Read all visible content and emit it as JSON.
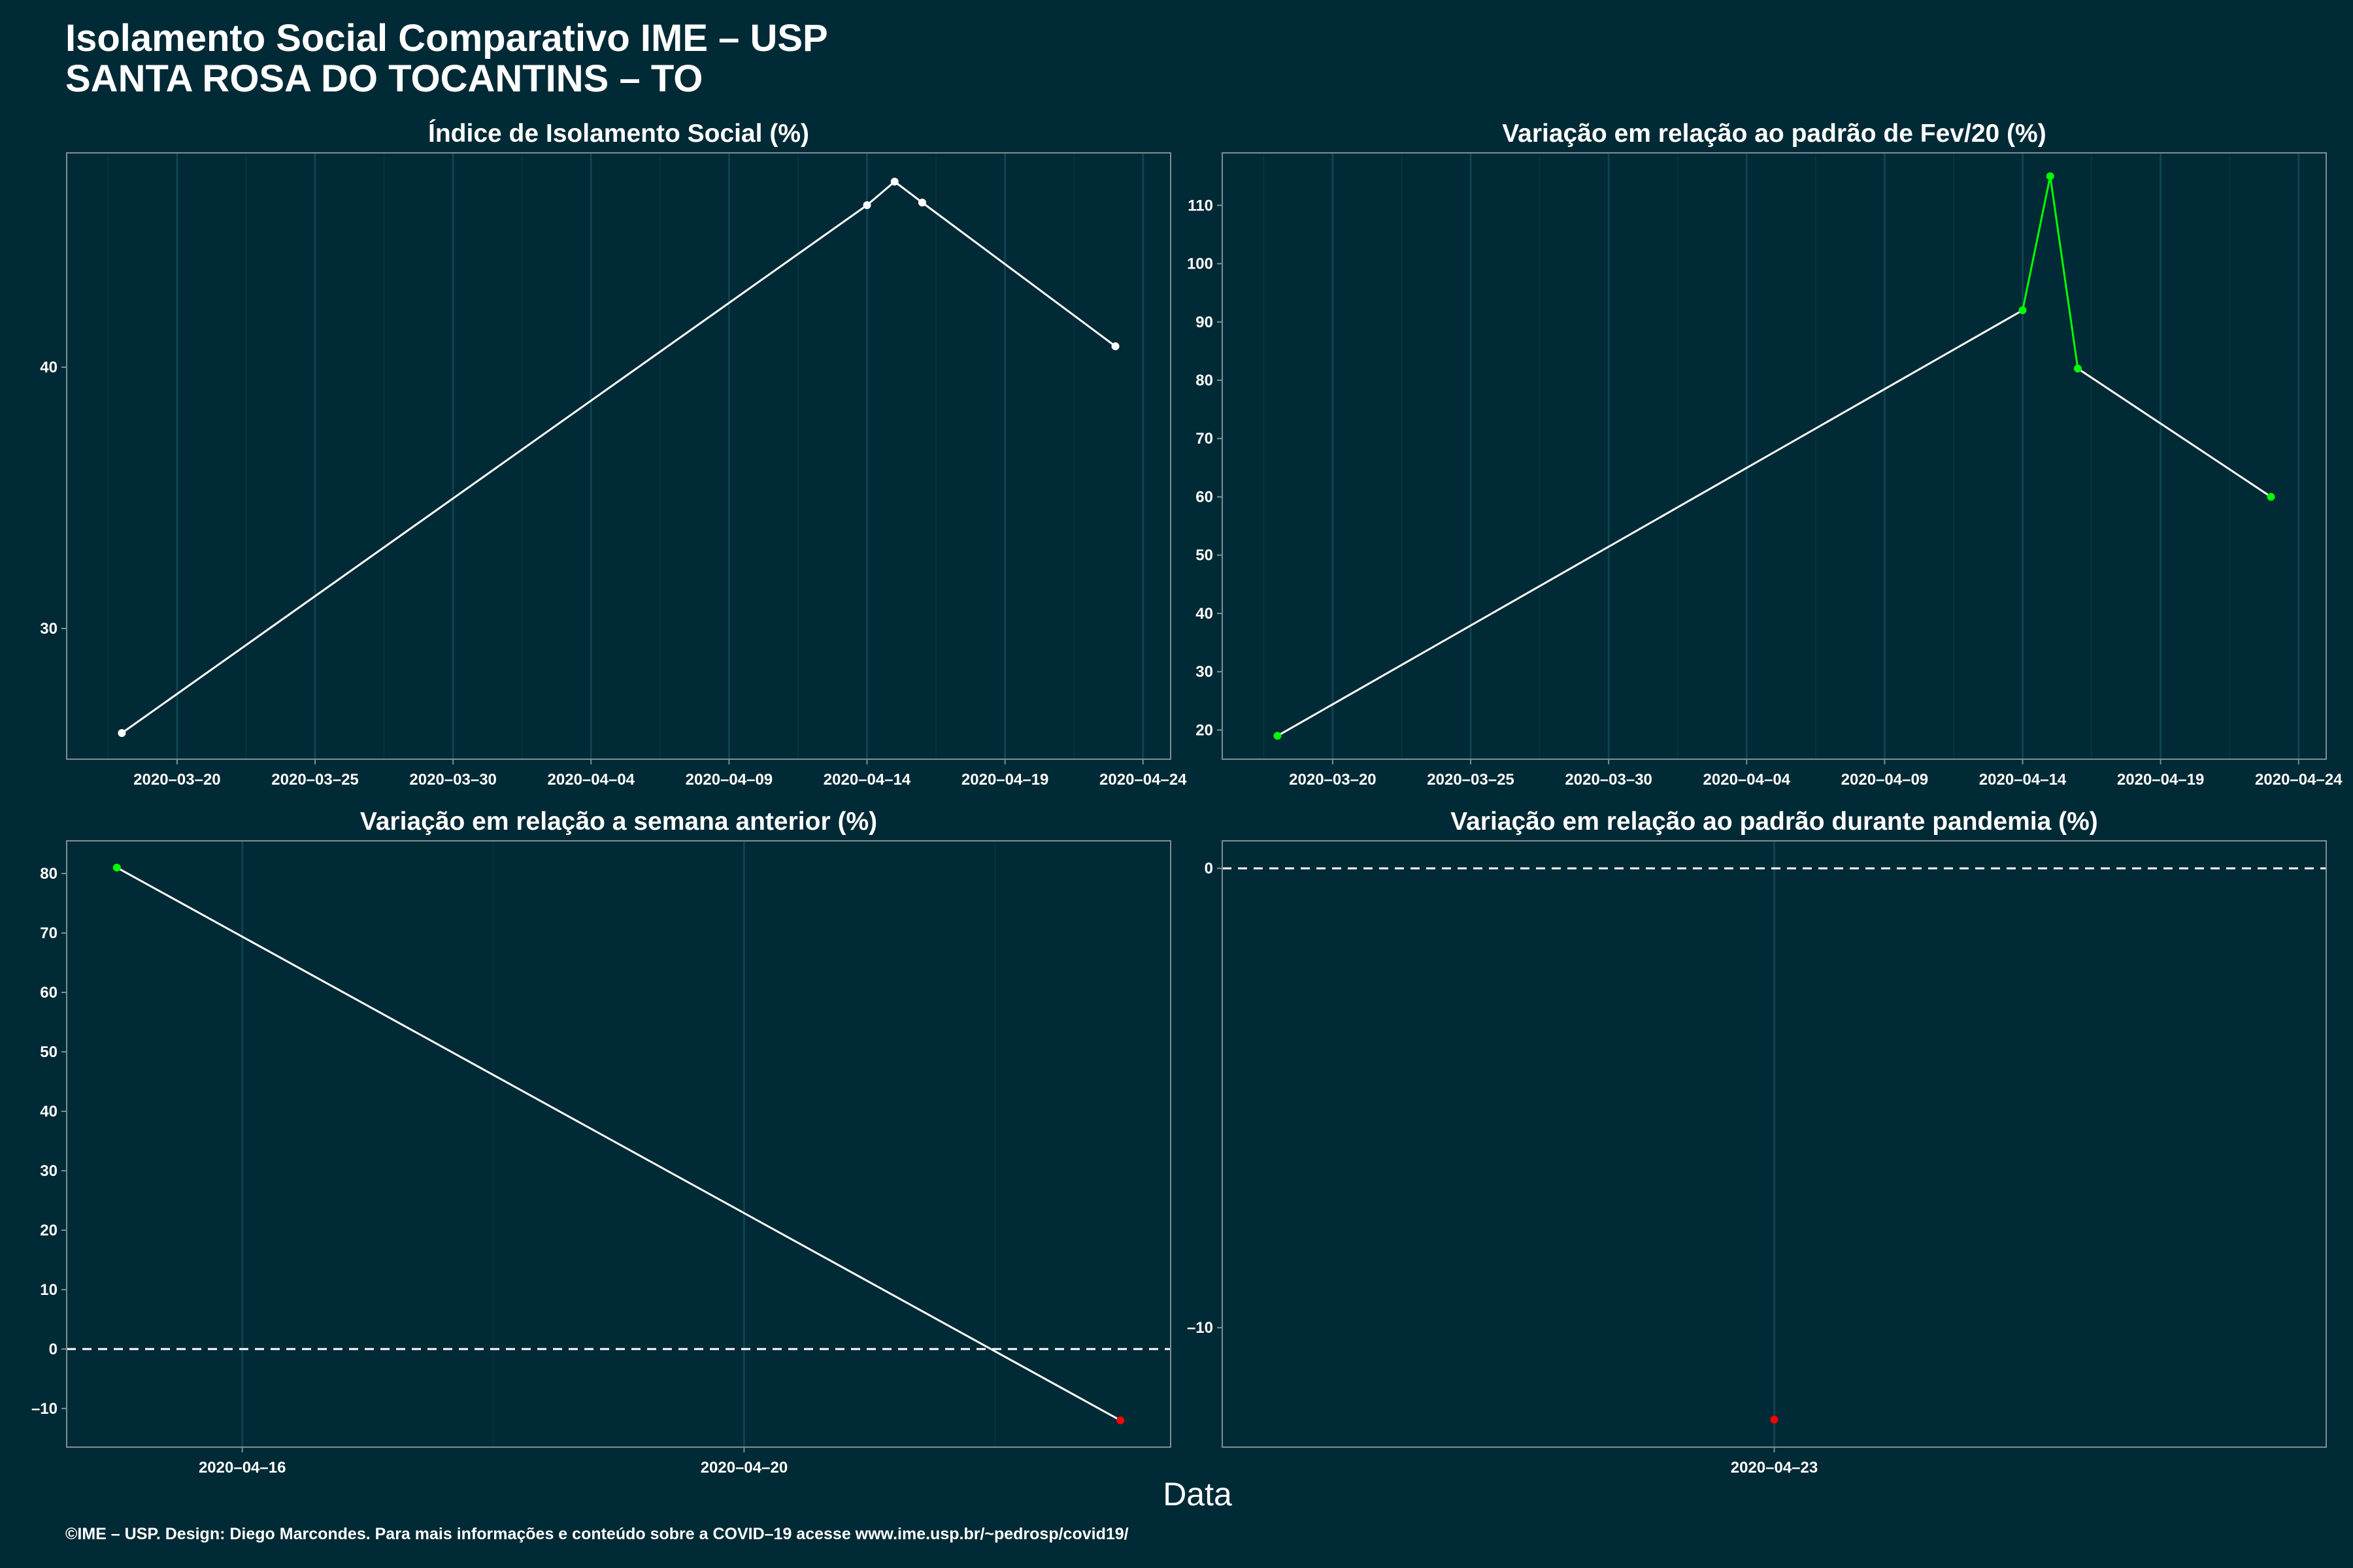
{
  "title_line1": "Isolamento Social Comparativo IME – USP",
  "title_line2": "SANTA ROSA DO TOCANTINS – TO",
  "xlabel": "Data",
  "caption": "©IME – USP. Design: Diego Marcondes. Para mais informações e conteúdo sobre a COVID–19 acesse www.ime.usp.br/~pedrosp/covid19/",
  "colors": {
    "background": "#002A35",
    "grid": "#0E4450",
    "line": "#ffffff",
    "positive": "#00FF00",
    "negative": "#FF0000"
  },
  "chart_data": [
    {
      "type": "line",
      "title": "Índice de Isolamento Social (%)",
      "x": [
        "2020-03-18",
        "2020-04-14",
        "2020-04-15",
        "2020-04-16",
        "2020-04-23"
      ],
      "y": [
        26.0,
        46.2,
        47.1,
        46.3,
        40.8
      ],
      "point_color": [
        "#ffffff",
        "#ffffff",
        "#ffffff",
        "#ffffff",
        "#ffffff"
      ],
      "xlim": [
        "2020-03-16",
        "2020-04-25"
      ],
      "ylim": [
        25,
        48.2
      ],
      "xticks": [
        "2020-03-20",
        "2020-03-25",
        "2020-03-30",
        "2020-04-04",
        "2020-04-09",
        "2020-04-14",
        "2020-04-19",
        "2020-04-24"
      ],
      "xtick_labels": [
        "2020–03–20",
        "2020–03–25",
        "2020–03–30",
        "2020–04–04",
        "2020–04–09",
        "2020–04–14",
        "2020–04–19",
        "2020–04–24"
      ],
      "yticks": [
        30,
        40
      ],
      "ytick_labels": [
        "30",
        "40"
      ],
      "hline": null
    },
    {
      "type": "line",
      "title": "Variação em relação ao padrão de Fev/20 (%)",
      "x": [
        "2020-03-18",
        "2020-04-14",
        "2020-04-15",
        "2020-04-16",
        "2020-04-23"
      ],
      "y": [
        19,
        92,
        115,
        82,
        60
      ],
      "point_color": [
        "#00FF00",
        "#00FF00",
        "#00FF00",
        "#00FF00",
        "#00FF00"
      ],
      "segment_color": [
        "#ffffff",
        "#00FF00",
        "#00FF00",
        "#ffffff"
      ],
      "xlim": [
        "2020-03-16",
        "2020-04-25"
      ],
      "ylim": [
        15,
        119
      ],
      "xticks": [
        "2020-03-20",
        "2020-03-25",
        "2020-03-30",
        "2020-04-04",
        "2020-04-09",
        "2020-04-14",
        "2020-04-19",
        "2020-04-24"
      ],
      "xtick_labels": [
        "2020–03–20",
        "2020–03–25",
        "2020–03–30",
        "2020–04–04",
        "2020–04–09",
        "2020–04–14",
        "2020–04–19",
        "2020–04–24"
      ],
      "yticks": [
        20,
        30,
        40,
        50,
        60,
        70,
        80,
        90,
        100,
        110
      ],
      "ytick_labels": [
        "20",
        "30",
        "40",
        "50",
        "60",
        "70",
        "80",
        "90",
        "100",
        "110"
      ],
      "hline": null
    },
    {
      "type": "line",
      "title": "Variação em relação a semana anterior (%)",
      "x": [
        "2020-04-15",
        "2020-04-23"
      ],
      "y": [
        81,
        -12
      ],
      "point_color": [
        "#00FF00",
        "#FF0000"
      ],
      "xlim": [
        "2020-04-14.6",
        "2020-04-23.4"
      ],
      "ylim": [
        -16.5,
        85.5
      ],
      "xticks": [
        "2020-04-16",
        "2020-04-20"
      ],
      "xtick_labels": [
        "2020–04–16",
        "2020–04–20"
      ],
      "yticks": [
        -10,
        0,
        10,
        20,
        30,
        40,
        50,
        60,
        70,
        80
      ],
      "ytick_labels": [
        "–10",
        "0",
        "10",
        "20",
        "30",
        "40",
        "50",
        "60",
        "70",
        "80"
      ],
      "hline": 0
    },
    {
      "type": "scatter",
      "title": "Variação em relação ao padrão durante pandemia (%)",
      "x": [
        "2020-04-23"
      ],
      "y": [
        -12
      ],
      "point_color": [
        "#FF0000"
      ],
      "xlim": [
        "2020-04-18",
        "2020-04-28"
      ],
      "ylim": [
        -12.6,
        0.6
      ],
      "xticks": [
        "2020-04-23"
      ],
      "xtick_labels": [
        "2020–04–23"
      ],
      "yticks": [
        -10,
        0
      ],
      "ytick_labels": [
        "–10",
        "0"
      ],
      "hline": 0
    }
  ]
}
